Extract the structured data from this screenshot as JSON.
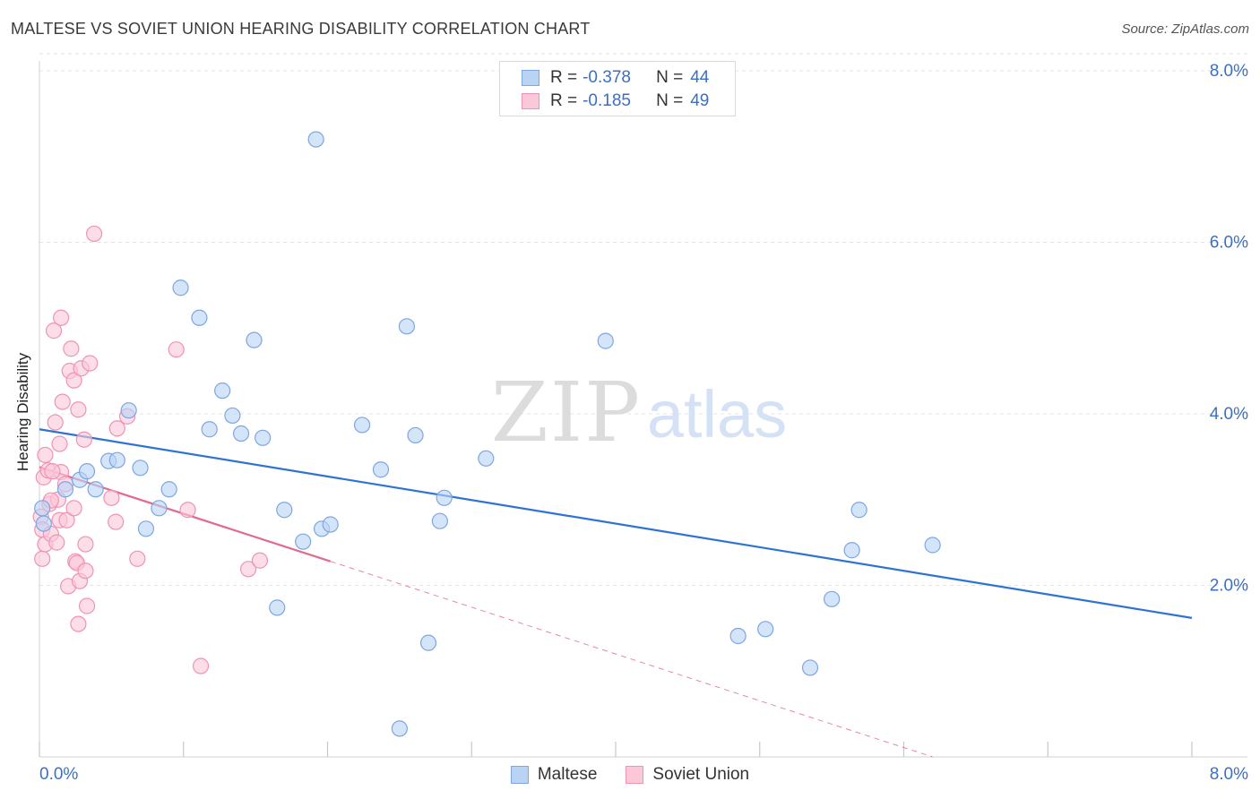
{
  "title": "MALTESE VS SOVIET UNION HEARING DISABILITY CORRELATION CHART",
  "source": "Source: ZipAtlas.com",
  "watermark": {
    "zip": "ZIP",
    "atlas": "atlas"
  },
  "legend_top": {
    "rows": [
      {
        "r_label": "R =",
        "r_value": "-0.378",
        "n_label": "N =",
        "n_value": "44",
        "color": "#b9d3f5"
      },
      {
        "r_label": "R =",
        "r_value": "-0.185",
        "n_label": "N =",
        "n_value": "49",
        "color": "#fbc8d8"
      }
    ]
  },
  "legend_bottom": {
    "items": [
      "Maltese",
      "Soviet Union"
    ]
  },
  "colors": {
    "blue_fill": "#b9d3f5",
    "blue_stroke": "#7ea6e0",
    "blue_line": "#2f72d6",
    "pink_fill": "#fbc8d8",
    "pink_stroke": "#ee94b2",
    "pink_line": "#e2698f",
    "tick_label": "#3b6fc4",
    "grid": "#e4e4e4"
  },
  "chart_data": {
    "type": "scatter",
    "title": "MALTESE VS SOVIET UNION HEARING DISABILITY CORRELATION CHART",
    "xlabel": "",
    "ylabel": "Hearing Disability",
    "xlim": [
      0,
      8
    ],
    "ylim": [
      0,
      8.2
    ],
    "x_tick_labels": [
      "0.0%",
      "8.0%"
    ],
    "y_ticks": [
      2,
      4,
      6,
      8
    ],
    "y_tick_labels": [
      "2.0%",
      "4.0%",
      "6.0%",
      "8.0%"
    ],
    "grid": "horizontal dashed",
    "legend": "top-center",
    "series": [
      {
        "name": "Maltese",
        "r": -0.378,
        "n": 44,
        "points": [
          [
            0.02,
            2.9
          ],
          [
            0.03,
            2.72
          ],
          [
            0.18,
            3.12
          ],
          [
            0.28,
            3.23
          ],
          [
            0.33,
            3.33
          ],
          [
            0.39,
            3.12
          ],
          [
            0.48,
            3.45
          ],
          [
            0.54,
            3.46
          ],
          [
            0.62,
            4.04
          ],
          [
            0.7,
            3.37
          ],
          [
            0.74,
            2.66
          ],
          [
            0.83,
            2.9
          ],
          [
            0.9,
            3.12
          ],
          [
            0.98,
            5.47
          ],
          [
            1.11,
            5.12
          ],
          [
            1.18,
            3.82
          ],
          [
            1.27,
            4.27
          ],
          [
            1.34,
            3.98
          ],
          [
            1.4,
            3.77
          ],
          [
            1.49,
            4.86
          ],
          [
            1.55,
            3.72
          ],
          [
            1.7,
            2.88
          ],
          [
            1.65,
            1.74
          ],
          [
            1.83,
            2.51
          ],
          [
            1.92,
            7.2
          ],
          [
            1.96,
            2.66
          ],
          [
            2.02,
            2.71
          ],
          [
            2.24,
            3.87
          ],
          [
            2.37,
            3.35
          ],
          [
            2.5,
            0.33
          ],
          [
            2.55,
            5.02
          ],
          [
            2.61,
            3.75
          ],
          [
            2.7,
            1.33
          ],
          [
            2.78,
            2.75
          ],
          [
            2.81,
            3.02
          ],
          [
            3.1,
            3.48
          ],
          [
            3.93,
            4.85
          ],
          [
            4.85,
            1.41
          ],
          [
            5.04,
            1.49
          ],
          [
            5.35,
            1.04
          ],
          [
            5.5,
            1.84
          ],
          [
            5.64,
            2.41
          ],
          [
            5.69,
            2.88
          ],
          [
            6.2,
            2.47
          ]
        ]
      },
      {
        "name": "Soviet Union",
        "r": -0.185,
        "n": 49,
        "points": [
          [
            0.01,
            2.8
          ],
          [
            0.02,
            2.31
          ],
          [
            0.02,
            2.65
          ],
          [
            0.03,
            3.26
          ],
          [
            0.04,
            2.48
          ],
          [
            0.04,
            3.52
          ],
          [
            0.06,
            3.34
          ],
          [
            0.07,
            2.95
          ],
          [
            0.08,
            2.6
          ],
          [
            0.1,
            4.97
          ],
          [
            0.11,
            3.9
          ],
          [
            0.12,
            2.5
          ],
          [
            0.13,
            3.0
          ],
          [
            0.14,
            2.76
          ],
          [
            0.14,
            3.65
          ],
          [
            0.15,
            3.32
          ],
          [
            0.15,
            5.12
          ],
          [
            0.16,
            4.14
          ],
          [
            0.18,
            3.18
          ],
          [
            0.19,
            2.76
          ],
          [
            0.2,
            1.99
          ],
          [
            0.21,
            4.5
          ],
          [
            0.22,
            4.76
          ],
          [
            0.24,
            4.39
          ],
          [
            0.24,
            2.9
          ],
          [
            0.25,
            2.28
          ],
          [
            0.26,
            2.26
          ],
          [
            0.27,
            1.55
          ],
          [
            0.27,
            4.05
          ],
          [
            0.28,
            2.05
          ],
          [
            0.29,
            4.53
          ],
          [
            0.31,
            3.7
          ],
          [
            0.32,
            2.17
          ],
          [
            0.32,
            2.48
          ],
          [
            0.33,
            1.76
          ],
          [
            0.35,
            4.59
          ],
          [
            0.38,
            6.1
          ],
          [
            0.5,
            3.02
          ],
          [
            0.53,
            2.74
          ],
          [
            0.54,
            3.83
          ],
          [
            0.61,
            3.97
          ],
          [
            0.68,
            2.31
          ],
          [
            0.95,
            4.75
          ],
          [
            1.03,
            2.88
          ],
          [
            1.12,
            1.06
          ],
          [
            1.45,
            2.19
          ],
          [
            1.53,
            2.29
          ],
          [
            0.08,
            2.99
          ],
          [
            0.09,
            3.33
          ]
        ]
      }
    ],
    "trend_lines": [
      {
        "series": "Maltese",
        "x": [
          0,
          8
        ],
        "y": [
          3.82,
          1.62
        ]
      },
      {
        "series": "Soviet Union",
        "x": [
          0,
          2.02
        ],
        "y": [
          3.38,
          2.28
        ]
      },
      {
        "series": "Soviet Union (extrapolated)",
        "x": [
          2.02,
          6.2
        ],
        "y": [
          2.28,
          0.0
        ]
      }
    ]
  }
}
